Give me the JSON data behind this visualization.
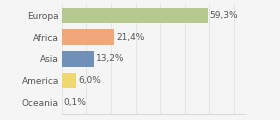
{
  "categories": [
    "Europa",
    "Africa",
    "Asia",
    "America",
    "Oceania"
  ],
  "values": [
    59.3,
    21.4,
    13.2,
    6.0,
    0.1
  ],
  "labels": [
    "59,3%",
    "21,4%",
    "13,2%",
    "6,0%",
    "0,1%"
  ],
  "bar_colors": [
    "#b5c98e",
    "#f0a87a",
    "#7090b8",
    "#f0d870",
    "#d0d0d0"
  ],
  "background_color": "#f5f5f5",
  "xlim": [
    0,
    75
  ],
  "label_fontsize": 6.5,
  "tick_fontsize": 6.5,
  "grid_color": "#dddddd",
  "spine_color": "#cccccc"
}
